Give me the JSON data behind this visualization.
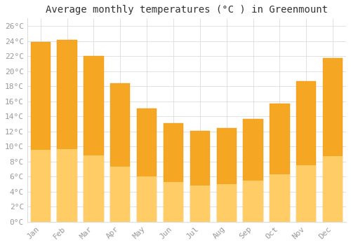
{
  "title": "Average monthly temperatures (°C ) in Greenmount",
  "months": [
    "Jan",
    "Feb",
    "Mar",
    "Apr",
    "May",
    "Jun",
    "Jul",
    "Aug",
    "Sep",
    "Oct",
    "Nov",
    "Dec"
  ],
  "values": [
    23.9,
    24.1,
    22.0,
    18.4,
    15.0,
    13.1,
    12.1,
    12.4,
    13.6,
    15.7,
    18.7,
    21.7
  ],
  "bar_color_top": "#F5A623",
  "bar_color_bottom": "#FFCC66",
  "ylim": [
    0,
    27
  ],
  "yticks": [
    0,
    2,
    4,
    6,
    8,
    10,
    12,
    14,
    16,
    18,
    20,
    22,
    24,
    26
  ],
  "ytick_labels": [
    "0°C",
    "2°C",
    "4°C",
    "6°C",
    "8°C",
    "10°C",
    "12°C",
    "14°C",
    "16°C",
    "18°C",
    "20°C",
    "22°C",
    "24°C",
    "26°C"
  ],
  "background_color": "#FFFFFF",
  "grid_color": "#DDDDDD",
  "title_fontsize": 10,
  "tick_fontsize": 8,
  "bar_width": 0.75,
  "tick_color": "#999999"
}
